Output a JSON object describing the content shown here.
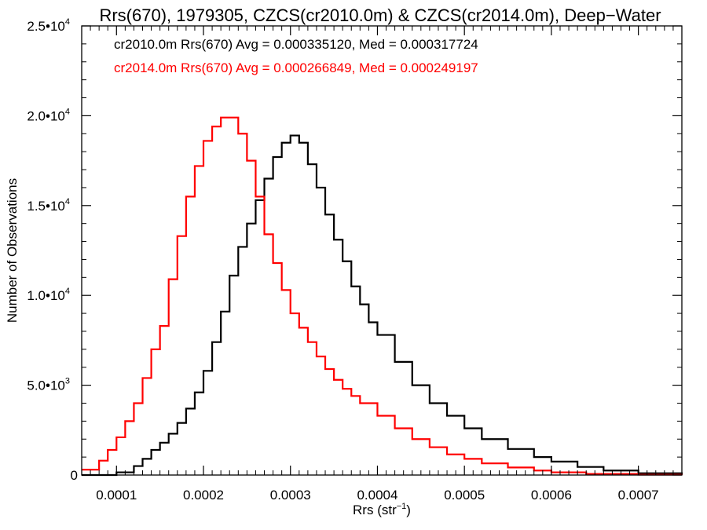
{
  "chart_data": {
    "type": "line",
    "title": "Rrs(670), 1979305, CZCS(cr2010.0m) & CZCS(cr2014.0m), Deep−Water",
    "xlabel_main": "Rrs (str",
    "xlabel_sup": "−1",
    "xlabel_end": ")",
    "ylabel": "Number of Observations",
    "xlim": [
      6e-05,
      0.00075
    ],
    "ylim": [
      0,
      25000
    ],
    "x_ticks": [
      {
        "value": 0.0001,
        "label": "0.0001"
      },
      {
        "value": 0.0002,
        "label": "0.0002"
      },
      {
        "value": 0.0003,
        "label": "0.0003"
      },
      {
        "value": 0.0004,
        "label": "0.0004"
      },
      {
        "value": 0.0005,
        "label": "0.0005"
      },
      {
        "value": 0.0006,
        "label": "0.0006"
      },
      {
        "value": 0.0007,
        "label": "0.0007"
      }
    ],
    "y_ticks": [
      {
        "value": 0,
        "base": "0",
        "exp": ""
      },
      {
        "value": 5000,
        "base": "5.0•10",
        "exp": "3"
      },
      {
        "value": 10000,
        "base": "1.0•10",
        "exp": "4"
      },
      {
        "value": 15000,
        "base": "1.5•10",
        "exp": "4"
      },
      {
        "value": 20000,
        "base": "2.0•10",
        "exp": "4"
      },
      {
        "value": 25000,
        "base": "2.5•10",
        "exp": "4"
      }
    ],
    "legend_placement": "top-left",
    "series": [
      {
        "name": "cr2010.0m",
        "color": "#000000",
        "legend": "cr2010.0m Rrs(670) Avg = 0.000335120, Med = 0.000317724",
        "x": [
          6e-05,
          8e-05,
          0.0001,
          0.00012,
          0.00013,
          0.00014,
          0.00015,
          0.00016,
          0.00017,
          0.00018,
          0.00019,
          0.0002,
          0.00021,
          0.00022,
          0.00023,
          0.00024,
          0.00025,
          0.00026,
          0.00027,
          0.00028,
          0.00029,
          0.0003,
          0.00031,
          0.00032,
          0.00033,
          0.00034,
          0.00035,
          0.00036,
          0.00037,
          0.00038,
          0.00039,
          0.0004,
          0.00042,
          0.00044,
          0.00046,
          0.00048,
          0.0005,
          0.00052,
          0.00055,
          0.00058,
          0.0006,
          0.00063,
          0.00066,
          0.0007,
          0.00075
        ],
        "y": [
          0,
          0,
          150,
          500,
          900,
          1400,
          1800,
          2300,
          2900,
          3700,
          4600,
          5800,
          7400,
          9100,
          11100,
          12700,
          14000,
          15300,
          16500,
          17700,
          18500,
          18900,
          18500,
          17300,
          16000,
          14500,
          13100,
          11900,
          10500,
          9500,
          8500,
          7800,
          6300,
          5000,
          4000,
          3300,
          2600,
          2000,
          1450,
          1000,
          750,
          450,
          250,
          100,
          30
        ]
      },
      {
        "name": "cr2014.0m",
        "color": "#ff0000",
        "legend": "cr2014.0m Rrs(670) Avg = 0.000266849, Med = 0.000249197",
        "x": [
          6e-05,
          8e-05,
          9e-05,
          0.0001,
          0.00011,
          0.00012,
          0.00013,
          0.00014,
          0.00015,
          0.00016,
          0.00017,
          0.00018,
          0.00019,
          0.0002,
          0.00021,
          0.00022,
          0.00023,
          0.00024,
          0.00025,
          0.00026,
          0.00027,
          0.00028,
          0.00029,
          0.0003,
          0.00031,
          0.00032,
          0.00033,
          0.00034,
          0.00035,
          0.00036,
          0.00037,
          0.00038,
          0.0004,
          0.00042,
          0.00044,
          0.00046,
          0.00048,
          0.0005,
          0.00052,
          0.00055,
          0.00058,
          0.0006,
          0.00064,
          0.0007,
          0.00075
        ],
        "y": [
          300,
          800,
          1400,
          2100,
          3000,
          4000,
          5400,
          7000,
          8300,
          10900,
          13300,
          15500,
          17200,
          18600,
          19400,
          19900,
          19900,
          19000,
          17500,
          15500,
          13400,
          11800,
          10300,
          9000,
          8200,
          7400,
          6600,
          5900,
          5300,
          4800,
          4400,
          4000,
          3300,
          2600,
          2000,
          1550,
          1150,
          900,
          650,
          420,
          250,
          150,
          60,
          20,
          0
        ]
      }
    ]
  }
}
